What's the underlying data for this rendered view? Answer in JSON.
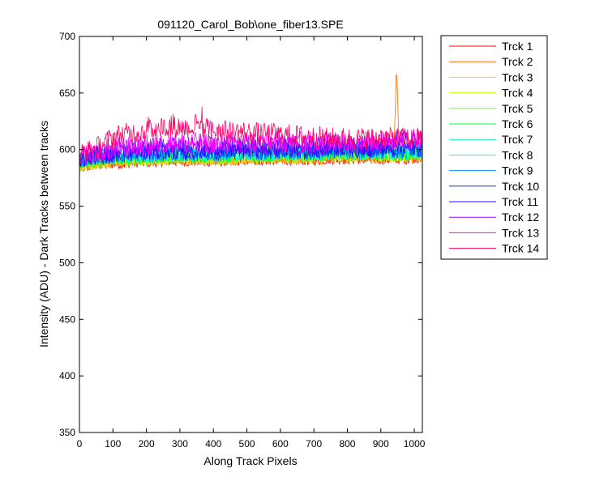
{
  "chart_data": {
    "type": "line",
    "title": "091120_Carol_Bob\\one_fiber13.SPE",
    "xlabel": "Along Track Pixels",
    "ylabel": "Intensity (ADU) - Dark Tracks between tracks",
    "xlim": [
      0,
      1024
    ],
    "ylim": [
      350,
      700
    ],
    "xticks": [
      0,
      100,
      200,
      300,
      400,
      500,
      600,
      700,
      800,
      900,
      1000
    ],
    "yticks": [
      350,
      400,
      450,
      500,
      550,
      600,
      650,
      700
    ],
    "grid": false,
    "legend_position": "outside-right",
    "x": [
      0,
      20,
      40,
      60,
      80,
      100,
      120,
      140,
      160,
      180,
      200,
      220,
      240,
      260,
      280,
      300,
      320,
      340,
      360,
      380,
      400,
      420,
      440,
      460,
      480,
      500,
      520,
      540,
      560,
      580,
      600,
      620,
      640,
      660,
      680,
      700,
      720,
      740,
      760,
      780,
      800,
      820,
      840,
      860,
      880,
      900,
      920,
      940,
      960,
      980,
      1000,
      1020
    ],
    "series": [
      {
        "name": "Trck 1",
        "color": "#ff0000",
        "values": [
          582,
          584,
          585,
          586,
          586,
          587,
          587,
          587,
          588,
          588,
          588,
          588,
          589,
          589,
          589,
          589,
          589,
          589,
          589,
          589,
          589,
          589,
          589,
          589,
          590,
          590,
          590,
          590,
          590,
          590,
          590,
          590,
          590,
          590,
          590,
          590,
          590,
          591,
          591,
          591,
          591,
          591,
          591,
          591,
          591,
          591,
          591,
          591,
          591,
          591,
          592,
          592
        ]
      },
      {
        "name": "Trck 2",
        "color": "#ff6600",
        "values": [
          583,
          585,
          586,
          587,
          587,
          588,
          588,
          588,
          589,
          589,
          589,
          589,
          590,
          590,
          590,
          590,
          590,
          590,
          590,
          590,
          590,
          590,
          590,
          590,
          591,
          591,
          591,
          591,
          591,
          591,
          591,
          591,
          591,
          591,
          591,
          591,
          591,
          592,
          592,
          592,
          592,
          592,
          592,
          592,
          592,
          592,
          592,
          600,
          594,
          592,
          593,
          593
        ]
      },
      {
        "name": "Trck 3",
        "color": "#ffcc00",
        "values": [
          584,
          586,
          587,
          588,
          588,
          589,
          589,
          589,
          590,
          590,
          590,
          590,
          591,
          591,
          591,
          591,
          591,
          591,
          591,
          591,
          591,
          591,
          591,
          591,
          592,
          592,
          592,
          592,
          592,
          592,
          592,
          592,
          592,
          592,
          592,
          592,
          592,
          593,
          593,
          593,
          593,
          593,
          593,
          593,
          593,
          593,
          593,
          593,
          593,
          593,
          594,
          594
        ]
      },
      {
        "name": "Trck 4",
        "color": "#ccff00",
        "values": [
          585,
          587,
          588,
          589,
          589,
          590,
          590,
          590,
          591,
          591,
          591,
          591,
          592,
          592,
          592,
          592,
          592,
          592,
          592,
          592,
          592,
          592,
          592,
          592,
          593,
          593,
          593,
          593,
          593,
          593,
          593,
          593,
          593,
          593,
          593,
          593,
          593,
          594,
          594,
          594,
          594,
          594,
          594,
          594,
          594,
          594,
          594,
          594,
          594,
          594,
          595,
          595
        ]
      },
      {
        "name": "Trck 5",
        "color": "#66ff00",
        "values": [
          586,
          588,
          589,
          590,
          590,
          591,
          591,
          591,
          592,
          592,
          592,
          592,
          593,
          593,
          593,
          593,
          593,
          593,
          593,
          593,
          593,
          593,
          593,
          593,
          594,
          594,
          594,
          594,
          594,
          594,
          594,
          594,
          594,
          594,
          594,
          594,
          594,
          595,
          595,
          595,
          595,
          595,
          595,
          595,
          595,
          595,
          595,
          595,
          595,
          595,
          596,
          596
        ]
      },
      {
        "name": "Trck 6",
        "color": "#00ff33",
        "values": [
          587,
          589,
          590,
          591,
          591,
          592,
          592,
          592,
          593,
          593,
          593,
          593,
          594,
          594,
          594,
          594,
          594,
          594,
          594,
          594,
          594,
          594,
          594,
          594,
          595,
          595,
          595,
          595,
          595,
          595,
          595,
          595,
          595,
          595,
          595,
          595,
          595,
          596,
          596,
          596,
          596,
          596,
          596,
          596,
          596,
          596,
          596,
          596,
          596,
          596,
          597,
          597
        ]
      },
      {
        "name": "Trck 7",
        "color": "#00ff99",
        "values": [
          588,
          590,
          591,
          592,
          592,
          593,
          593,
          593,
          594,
          594,
          594,
          594,
          595,
          595,
          595,
          595,
          595,
          595,
          595,
          595,
          595,
          595,
          595,
          595,
          596,
          596,
          596,
          596,
          596,
          596,
          596,
          596,
          596,
          596,
          596,
          596,
          596,
          597,
          597,
          597,
          597,
          597,
          597,
          597,
          597,
          597,
          597,
          597,
          597,
          597,
          598,
          598
        ]
      },
      {
        "name": "Trck 8",
        "color": "#00ffff",
        "values": [
          589,
          591,
          592,
          593,
          593,
          594,
          594,
          594,
          595,
          595,
          595,
          595,
          596,
          596,
          596,
          596,
          596,
          596,
          596,
          596,
          596,
          596,
          596,
          596,
          597,
          597,
          597,
          597,
          597,
          597,
          597,
          597,
          597,
          597,
          597,
          597,
          597,
          598,
          598,
          598,
          598,
          598,
          598,
          598,
          598,
          598,
          598,
          598,
          598,
          598,
          599,
          599
        ]
      },
      {
        "name": "Trck 9",
        "color": "#0099ff",
        "values": [
          590,
          592,
          593,
          594,
          594,
          595,
          595,
          595,
          596,
          596,
          596,
          596,
          597,
          597,
          597,
          597,
          597,
          597,
          597,
          597,
          597,
          597,
          597,
          597,
          598,
          598,
          598,
          598,
          598,
          598,
          598,
          598,
          598,
          598,
          598,
          598,
          598,
          599,
          599,
          599,
          599,
          599,
          599,
          599,
          599,
          599,
          599,
          599,
          599,
          599,
          600,
          600
        ]
      },
      {
        "name": "Trck 10",
        "color": "#0033ff",
        "values": [
          591,
          593,
          594,
          595,
          595,
          596,
          596,
          596,
          597,
          597,
          597,
          597,
          598,
          598,
          598,
          598,
          598,
          598,
          598,
          598,
          598,
          598,
          598,
          598,
          599,
          599,
          599,
          599,
          599,
          599,
          599,
          599,
          599,
          599,
          599,
          599,
          599,
          600,
          600,
          600,
          600,
          600,
          600,
          600,
          600,
          600,
          600,
          600,
          600,
          600,
          601,
          601
        ]
      },
      {
        "name": "Trck 11",
        "color": "#3300ff",
        "values": [
          592,
          594,
          595,
          596,
          596,
          597,
          598,
          598,
          599,
          599,
          599,
          600,
          600,
          600,
          600,
          600,
          600,
          600,
          600,
          600,
          600,
          600,
          600,
          600,
          601,
          601,
          601,
          601,
          601,
          601,
          601,
          601,
          601,
          601,
          601,
          601,
          601,
          602,
          602,
          602,
          602,
          602,
          602,
          602,
          602,
          602,
          602,
          602,
          602,
          602,
          603,
          603
        ]
      },
      {
        "name": "Trck 12",
        "color": "#9900ff",
        "values": [
          593,
          595,
          596,
          597,
          598,
          599,
          600,
          600,
          601,
          601,
          601,
          602,
          602,
          603,
          603,
          603,
          603,
          603,
          603,
          603,
          603,
          603,
          603,
          603,
          604,
          604,
          604,
          604,
          604,
          604,
          604,
          604,
          604,
          604,
          604,
          604,
          604,
          605,
          605,
          605,
          605,
          605,
          605,
          605,
          605,
          606,
          607,
          608,
          608,
          607,
          607,
          607
        ]
      },
      {
        "name": "Trck 13",
        "color": "#ff00ff",
        "values": [
          594,
          596,
          597,
          598,
          600,
          601,
          602,
          602,
          603,
          603,
          604,
          604,
          605,
          605,
          606,
          606,
          606,
          606,
          606,
          606,
          606,
          606,
          606,
          606,
          607,
          607,
          607,
          607,
          607,
          607,
          607,
          607,
          607,
          607,
          607,
          607,
          607,
          608,
          608,
          608,
          608,
          608,
          608,
          608,
          608,
          609,
          610,
          611,
          611,
          610,
          610,
          610
        ]
      },
      {
        "name": "Trck 14",
        "color": "#ff0066",
        "values": [
          596,
          598,
          600,
          603,
          607,
          611,
          613,
          614,
          615,
          616,
          617,
          618,
          620,
          620,
          620,
          620,
          619,
          619,
          618,
          618,
          617,
          617,
          616,
          616,
          616,
          615,
          615,
          614,
          614,
          614,
          613,
          613,
          612,
          612,
          612,
          611,
          611,
          610,
          610,
          610,
          610,
          610,
          610,
          610,
          610,
          610,
          610,
          610,
          610,
          610,
          610,
          610
        ]
      }
    ]
  }
}
